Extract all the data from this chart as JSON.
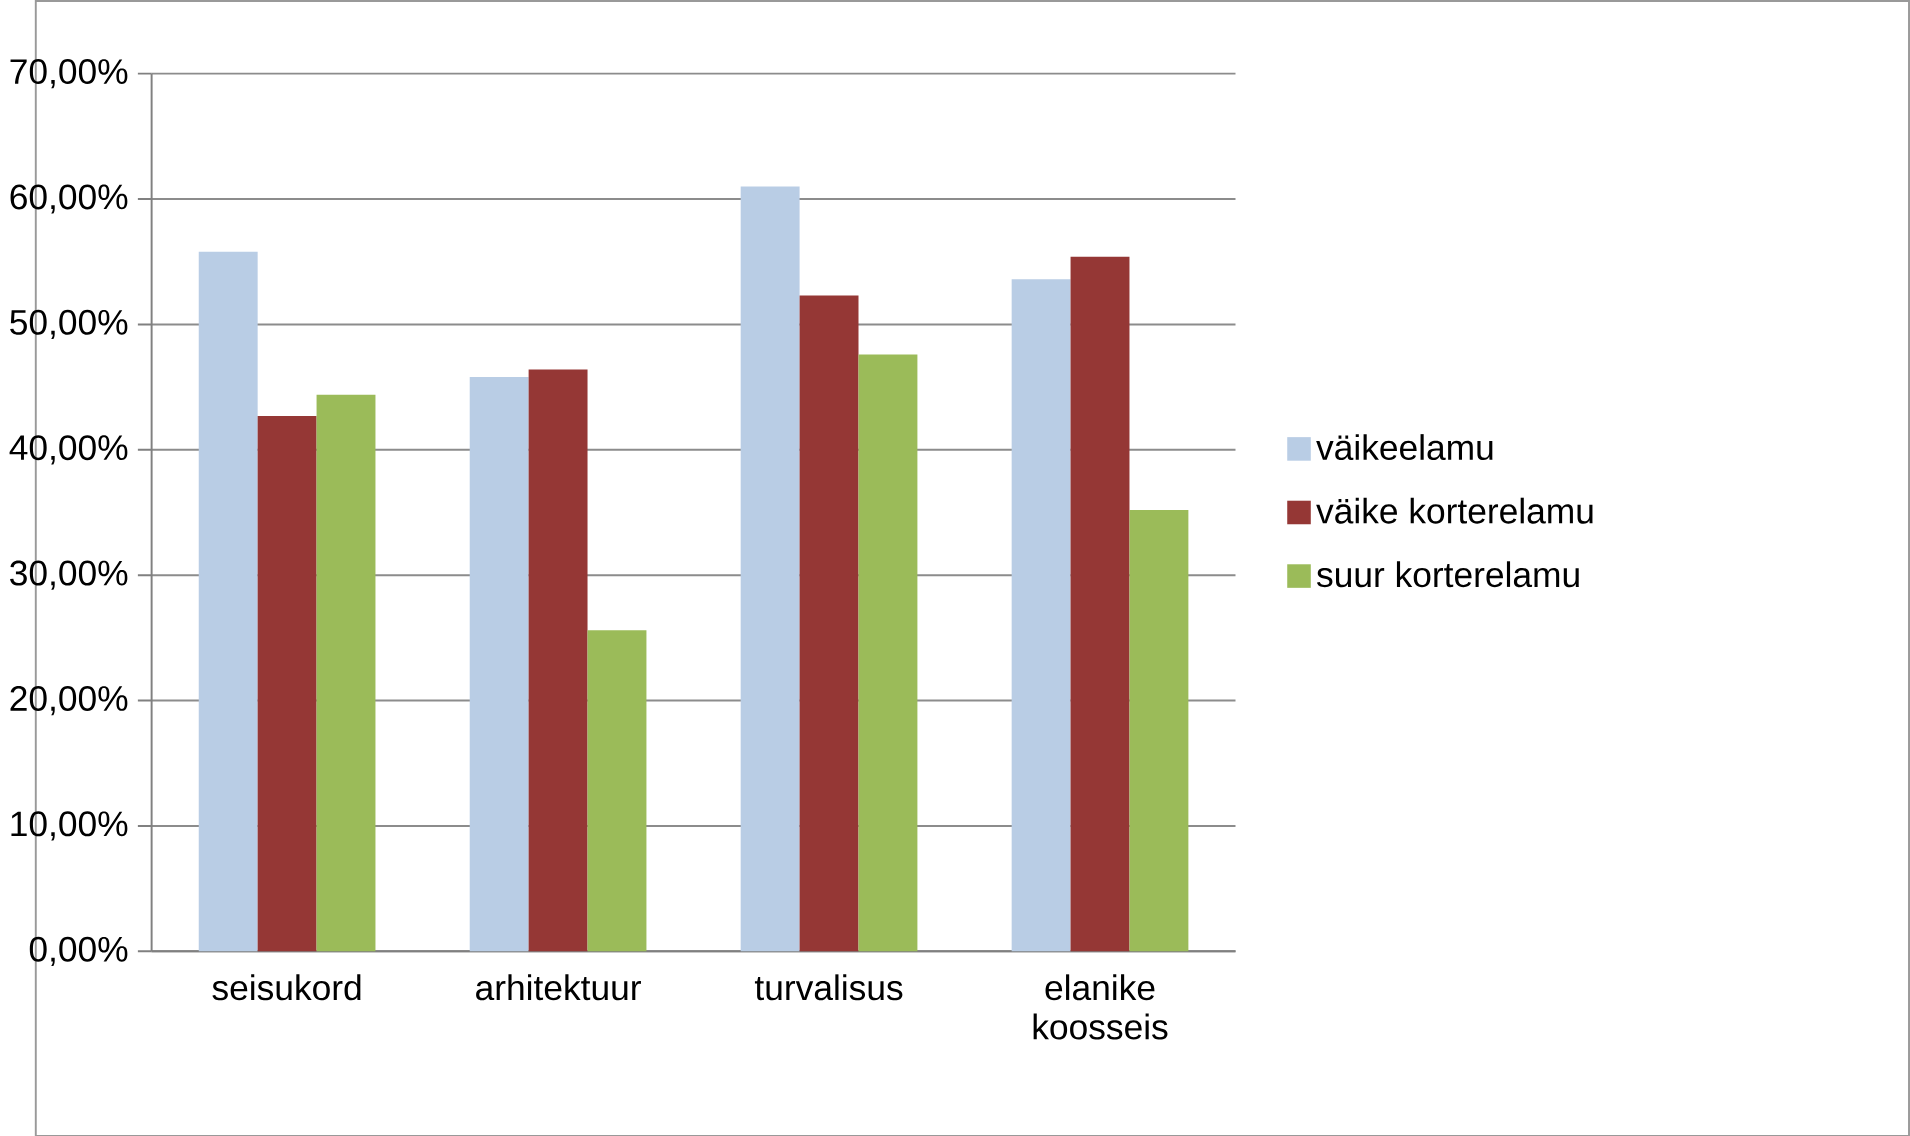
{
  "chart_data": {
    "type": "bar",
    "categories": [
      "seisukord",
      "arhitektuur",
      "turvalisus",
      "elanike koosseis"
    ],
    "series": [
      {
        "name": "väikeelamu",
        "color": "#b9cde5",
        "values": [
          55.8,
          45.8,
          61.0,
          53.6
        ]
      },
      {
        "name": "väike korterelamu",
        "color": "#953735",
        "values": [
          42.7,
          46.4,
          52.3,
          55.4
        ]
      },
      {
        "name": "suur korterelamu",
        "color": "#9bbb59",
        "values": [
          44.4,
          25.6,
          47.6,
          35.2
        ]
      }
    ],
    "ylim": [
      0,
      70
    ],
    "yticks": [
      {
        "value": 0,
        "label": "0,00%"
      },
      {
        "value": 10,
        "label": "10,00%"
      },
      {
        "value": 20,
        "label": "20,00%"
      },
      {
        "value": 30,
        "label": "30,00%"
      },
      {
        "value": 40,
        "label": "40,00%"
      },
      {
        "value": 50,
        "label": "50,00%"
      },
      {
        "value": 60,
        "label": "60,00%"
      },
      {
        "value": 70,
        "label": "70,00%"
      }
    ],
    "grid": "y",
    "legend": "right"
  }
}
